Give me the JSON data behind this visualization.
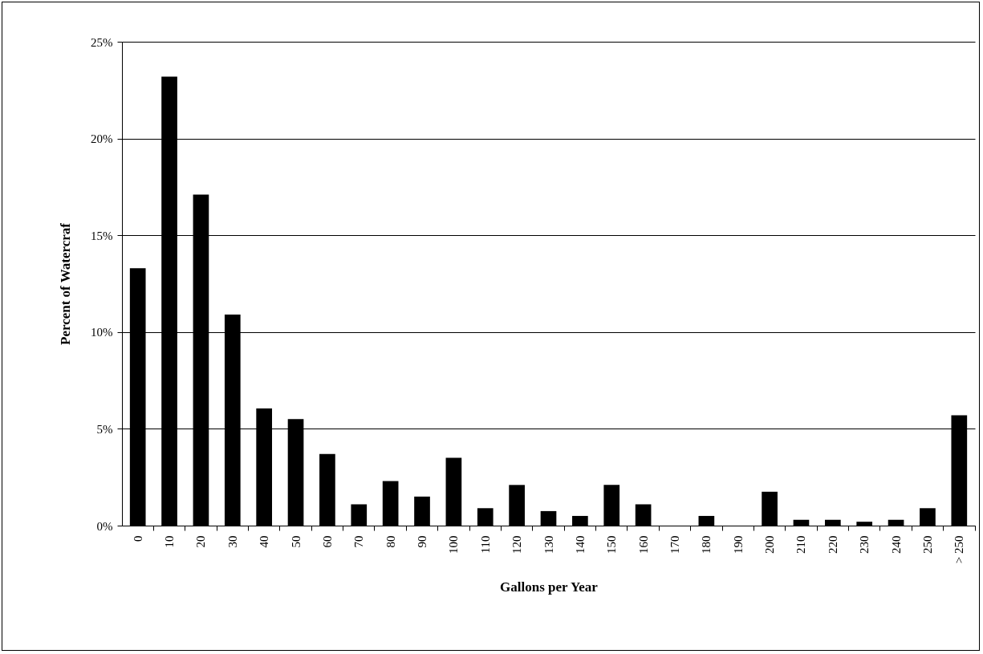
{
  "chart_data": {
    "type": "bar",
    "xlabel": "Gallons per Year",
    "ylabel": "Percent of Watercraf",
    "categories": [
      "0",
      "10",
      "20",
      "30",
      "40",
      "50",
      "60",
      "70",
      "80",
      "90",
      "100",
      "110",
      "120",
      "130",
      "140",
      "150",
      "160",
      "170",
      "180",
      "190",
      "200",
      "210",
      "220",
      "230",
      "240",
      "250",
      "> 250"
    ],
    "values": [
      13.3,
      23.2,
      17.1,
      10.9,
      6.05,
      5.5,
      3.7,
      1.1,
      2.3,
      1.5,
      3.5,
      0.9,
      2.1,
      0.75,
      0.5,
      2.1,
      1.1,
      0,
      0.5,
      0,
      1.75,
      0.3,
      0.3,
      0.2,
      0.3,
      0.9,
      5.7
    ],
    "color": "#000000",
    "ylim": [
      0,
      25
    ],
    "yticks": [
      {
        "value": 0,
        "label": "0%"
      },
      {
        "value": 5,
        "label": "5%"
      },
      {
        "value": 10,
        "label": "10%"
      },
      {
        "value": 15,
        "label": "15%"
      },
      {
        "value": 20,
        "label": "20%"
      },
      {
        "value": 25,
        "label": "25%"
      }
    ],
    "grid": "y"
  }
}
